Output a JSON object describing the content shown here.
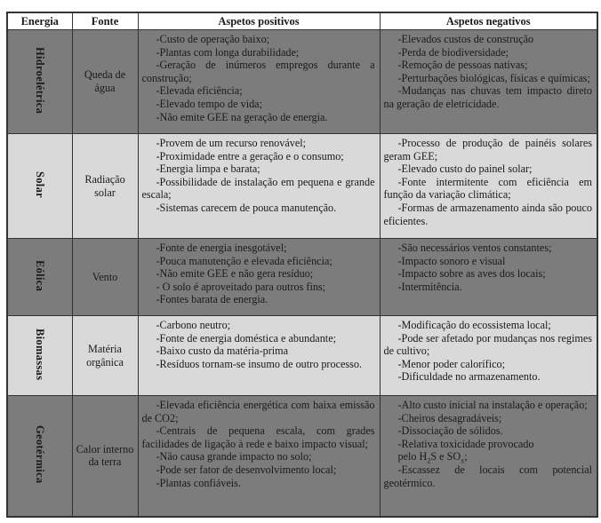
{
  "headers": [
    "Energia",
    "Fonte",
    "Aspetos positivos",
    "Aspetos negativos"
  ],
  "colors": {
    "dark_row": "#7c7c7c",
    "light_row": "#d9d9d9",
    "header": "#ffffff"
  },
  "rows": [
    {
      "energia": "Hidroelétrica",
      "fonte": "Queda de água",
      "shade": "dark",
      "positivos": [
        "-Custo de operação baixo;",
        "-Plantas com longa durabilidade;",
        "-Geração de inúmeros empregos durante a construção;",
        "-Elevada eficiência;",
        "-Elevado tempo de vida;",
        "-Não emite GEE na geração de energia."
      ],
      "negativos": [
        "-Elevados custos de construção",
        "-Perda de biodiversidade;",
        "-Remoção de pessoas nativas;",
        "-Perturbações biológicas, físicas e químicas;",
        "-Mudanças nas chuvas tem impacto direto na geração de eletricidade."
      ]
    },
    {
      "energia": "Solar",
      "fonte": "Radiação solar",
      "shade": "light",
      "positivos": [
        "-Provem de um recurso renovável;",
        "-Proximidade entre a geração e o consumo;",
        "-Energia limpa e barata;",
        "-Possibilidade de instalação em pequena e grande escala;",
        "-Sistemas carecem de pouca manutenção."
      ],
      "negativos": [
        "-Processo de produção de painéis solares geram GEE;",
        "-Elevado custo do painel solar;",
        "-Fonte intermitente com eficiência em função da variação climática;",
        "-Formas de armazenamento ainda são pouco eficientes."
      ]
    },
    {
      "energia": "Eólica",
      "fonte": "Vento",
      "shade": "dark",
      "positivos": [
        "-Fonte de energia inesgotável;",
        "-Pouca manutenção e elevada eficiência;",
        "-Não emite GEE e não gera resíduo;",
        "- O solo é aproveitado para outros fins;",
        "-Fontes barata de energia."
      ],
      "negativos": [
        "-São necessários ventos constantes;",
        "-Impacto sonoro e visual",
        "-Impacto sobre as aves dos locais;",
        "-Intermitência."
      ]
    },
    {
      "energia": "Biomassas",
      "fonte": "Matéria orgânica",
      "shade": "light",
      "positivos": [
        "-Carbono neutro;",
        "-Fonte de energia doméstica e abundante;",
        "-Baixo custo da matéria-prima",
        "-Resíduos tornam-se insumo de outro processo."
      ],
      "negativos": [
        "-Modificação do ecossistema local;",
        "-Pode ser afetado por mudanças nos regimes de cultivo;",
        "-Menor poder calorífico;",
        "-Dificuldade no armazenamento."
      ]
    },
    {
      "energia": "Geotérmica",
      "fonte": "Calor interno da terra",
      "shade": "dark",
      "positivos": [
        "-Elevada eficiência energética com baixa emissão de CO2;",
        "-Centrais de pequena escala, com grades facilidades de ligação à rede e baixo impacto visual;",
        "-Não causa grande impacto no solo;",
        "-Pode ser fator de desenvolvimento local;",
        "-Plantas confiáveis."
      ],
      "negativos": [
        "-Alto custo inicial na instalação e operação;",
        "-Cheiros desagradáveis;",
        "-Dissociação de sólidos.",
        "-Relativa toxicidade provocado",
        [
          {
            "t": "pelo H"
          },
          {
            "t": "2",
            "sub": true
          },
          {
            "t": "S e SO"
          },
          {
            "t": "x",
            "sub": true
          },
          {
            "t": ";"
          }
        ],
        "-Escassez de locais com potencial geotérmico."
      ]
    }
  ]
}
